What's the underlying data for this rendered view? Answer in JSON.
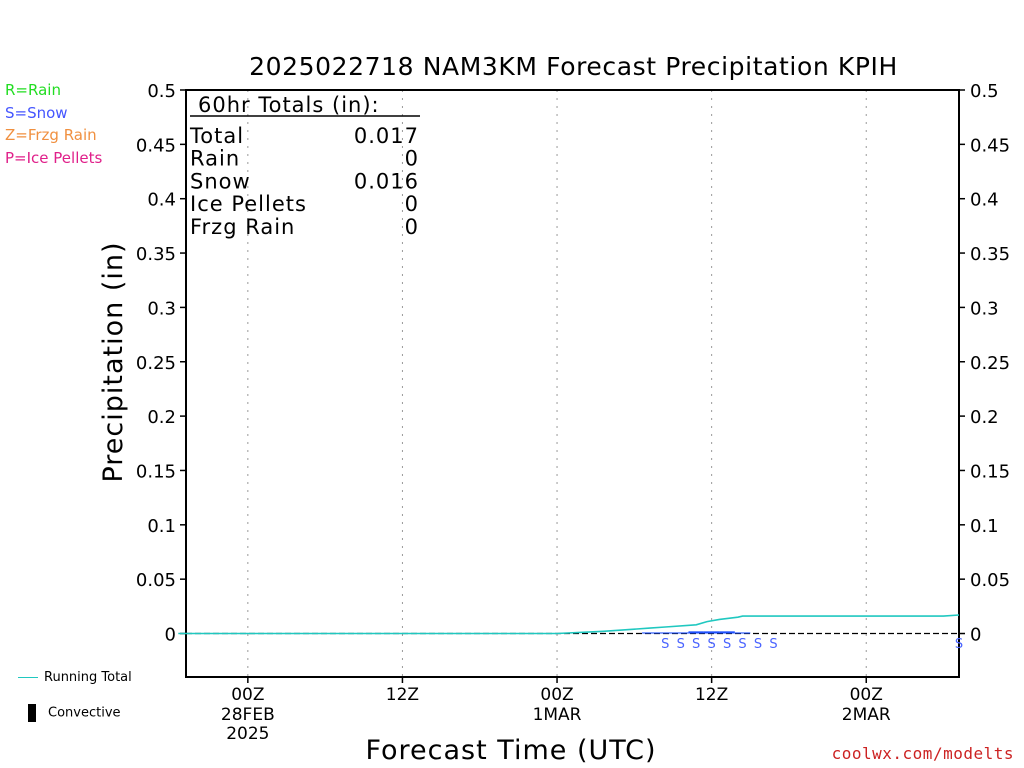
{
  "chart_data": {
    "type": "area",
    "title": "2025022718 NAM3KM Forecast Precipitation KPIH",
    "xlabel": "Forecast Time (UTC)",
    "ylabel": "Precipitation (in)",
    "ylim": [
      -0.04,
      0.5
    ],
    "yticks": [
      "0",
      "0.05",
      "0.1",
      "0.15",
      "0.2",
      "0.25",
      "0.3",
      "0.35",
      "0.4",
      "0.45",
      "0.5"
    ],
    "yticks_right": [
      "0",
      "0.05",
      "0.1",
      "0.15",
      "0.2",
      "0.25",
      "0.3",
      "0.35",
      "0.4",
      "0.45",
      "0.5"
    ],
    "xlim_hours": [
      -4,
      46
    ],
    "x_units": "hours from 00Z 28FEB 2025",
    "xticks": [
      {
        "hour": 0,
        "label": "00Z",
        "sub1": "28FEB",
        "sub2": "2025"
      },
      {
        "hour": 10,
        "label": "12Z",
        "sub1": "",
        "sub2": ""
      },
      {
        "hour": 20,
        "label": "00Z",
        "sub1": "1MAR",
        "sub2": ""
      },
      {
        "hour": 30,
        "label": "12Z",
        "sub1": "",
        "sub2": ""
      },
      {
        "hour": 40,
        "label": "00Z",
        "sub1": "2MAR",
        "sub2": ""
      }
    ],
    "grid": "vertical dotted",
    "totals": {
      "header": "60hr Totals (in):",
      "rows": [
        {
          "label": "Total",
          "value": "0.017"
        },
        {
          "label": "Rain",
          "value": "0"
        },
        {
          "label": "Snow",
          "value": "0.016"
        },
        {
          "label": "Ice Pellets",
          "value": "0"
        },
        {
          "label": "Frzg Rain",
          "value": "0"
        }
      ]
    },
    "series": [
      {
        "name": "Running Total",
        "color": "#20c8c0",
        "x": [
          -4.5,
          20,
          23,
          26,
          27,
          29,
          29.7,
          30.5,
          31.7,
          32,
          40,
          45,
          46
        ],
        "values": [
          0,
          0,
          0.002,
          0.005,
          0.006,
          0.008,
          0.011,
          0.013,
          0.015,
          0.016,
          0.016,
          0.016,
          0.017
        ]
      },
      {
        "name": "Snow",
        "color": "#1e50ff",
        "x": [
          26,
          27,
          28,
          29,
          30,
          31,
          32
        ],
        "values": [
          0.001,
          0.001,
          0.001,
          0.002,
          0.002,
          0.002,
          0.001
        ]
      }
    ],
    "ptype_markers": {
      "symbol": "S",
      "color": "#4a64ff",
      "hours": [
        27,
        28,
        29,
        30,
        31,
        32,
        33,
        34,
        46
      ]
    },
    "type_legend": [
      {
        "text": "R=Rain",
        "color": "#22dd22"
      },
      {
        "text": "S=Snow",
        "color": "#4455ff"
      },
      {
        "text": "Z=Frzg Rain",
        "color": "#f09040"
      },
      {
        "text": "P=Ice Pellets",
        "color": "#e0208a"
      }
    ],
    "bottom_legend": [
      {
        "text": "Running Total",
        "symbol": "line",
        "color": "#20c8c0"
      },
      {
        "text": "Convective",
        "symbol": "bar",
        "color": "#000000"
      }
    ],
    "credit": "coolwx.com/modelts",
    "credit_color": "#cc2222"
  }
}
